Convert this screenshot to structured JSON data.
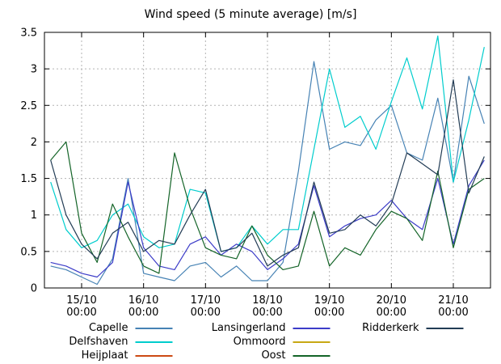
{
  "title": "Wind speed (5 minute average) [m/s]",
  "chart_data": {
    "type": "line",
    "title": "Wind speed (5 minute average) [m/s]",
    "xlabel": "",
    "ylabel": "",
    "xlim": [
      14.4,
      21.6
    ],
    "ylim": [
      0,
      3.5
    ],
    "grid": true,
    "grid_style": "dashed",
    "legend_position": "bottom",
    "x_days": [
      14.5,
      14.75,
      15,
      15.25,
      15.5,
      15.75,
      16,
      16.25,
      16.5,
      16.75,
      17,
      17.25,
      17.5,
      17.75,
      18,
      18.25,
      18.5,
      18.75,
      19,
      19.25,
      19.5,
      19.75,
      20,
      20.25,
      20.5,
      20.75,
      21,
      21.25,
      21.5
    ],
    "x_ticks": [
      {
        "value": 15,
        "label": "15/10",
        "sublabel": "00:00"
      },
      {
        "value": 16,
        "label": "16/10",
        "sublabel": "00:00"
      },
      {
        "value": 17,
        "label": "17/10",
        "sublabel": "00:00"
      },
      {
        "value": 18,
        "label": "18/10",
        "sublabel": "00:00"
      },
      {
        "value": 19,
        "label": "19/10",
        "sublabel": "00:00"
      },
      {
        "value": 20,
        "label": "20/10",
        "sublabel": "00:00"
      },
      {
        "value": 21,
        "label": "21/10",
        "sublabel": "00:00"
      }
    ],
    "y_ticks": [
      {
        "value": 0,
        "label": "0"
      },
      {
        "value": 0.5,
        "label": "0.5"
      },
      {
        "value": 1,
        "label": "1"
      },
      {
        "value": 1.5,
        "label": "1.5"
      },
      {
        "value": 2,
        "label": "2"
      },
      {
        "value": 2.5,
        "label": "2.5"
      },
      {
        "value": 3,
        "label": "3"
      },
      {
        "value": 3.5,
        "label": "3.5"
      }
    ],
    "series": [
      {
        "name": "Capelle",
        "color": "#4682b4",
        "values": [
          0.3,
          0.25,
          0.15,
          0.05,
          0.4,
          1.5,
          0.2,
          0.15,
          0.1,
          0.3,
          0.35,
          0.15,
          0.3,
          0.1,
          0.1,
          0.35,
          1.6,
          3.1,
          1.9,
          2.0,
          1.95,
          2.3,
          2.5,
          1.85,
          1.75,
          2.6,
          1.45,
          2.9,
          2.25
        ]
      },
      {
        "name": "Delfshaven",
        "color": "#00cdcd",
        "values": [
          1.45,
          0.8,
          0.55,
          0.65,
          1.0,
          1.15,
          0.7,
          0.55,
          0.6,
          1.35,
          1.3,
          0.5,
          0.55,
          0.85,
          0.6,
          0.8,
          0.8,
          1.9,
          3.0,
          2.2,
          2.35,
          1.9,
          2.55,
          3.15,
          2.45,
          3.45,
          1.45,
          2.3,
          3.3
        ]
      },
      {
        "name": "Heijplaat",
        "color": "#cc4a14",
        "values": []
      },
      {
        "name": "Lansingerland",
        "color": "#3c3cc8",
        "values": [
          0.35,
          0.3,
          0.2,
          0.15,
          0.35,
          1.45,
          0.55,
          0.3,
          0.25,
          0.6,
          0.7,
          0.45,
          0.6,
          0.5,
          0.25,
          0.4,
          0.6,
          1.4,
          0.7,
          0.85,
          0.95,
          1.0,
          1.2,
          0.95,
          0.8,
          1.5,
          0.6,
          1.4,
          1.75
        ]
      },
      {
        "name": "Ommoord",
        "color": "#c8a814",
        "values": []
      },
      {
        "name": "Oost",
        "color": "#146428",
        "values": [
          1.75,
          2.0,
          0.75,
          0.35,
          1.15,
          0.7,
          0.3,
          0.2,
          1.85,
          1.1,
          0.55,
          0.45,
          0.4,
          0.85,
          0.45,
          0.25,
          0.3,
          1.05,
          0.3,
          0.55,
          0.45,
          0.8,
          1.05,
          0.95,
          0.65,
          1.6,
          0.55,
          1.35,
          1.5
        ]
      },
      {
        "name": "Ridderkerk",
        "color": "#223c55",
        "values": [
          1.75,
          1.0,
          0.6,
          0.4,
          0.75,
          0.9,
          0.5,
          0.65,
          0.6,
          1.0,
          1.35,
          0.5,
          0.55,
          0.75,
          0.3,
          0.45,
          0.55,
          1.45,
          0.75,
          0.8,
          1.0,
          0.85,
          1.15,
          1.85,
          1.7,
          1.55,
          2.85,
          1.3,
          1.8
        ]
      }
    ]
  }
}
